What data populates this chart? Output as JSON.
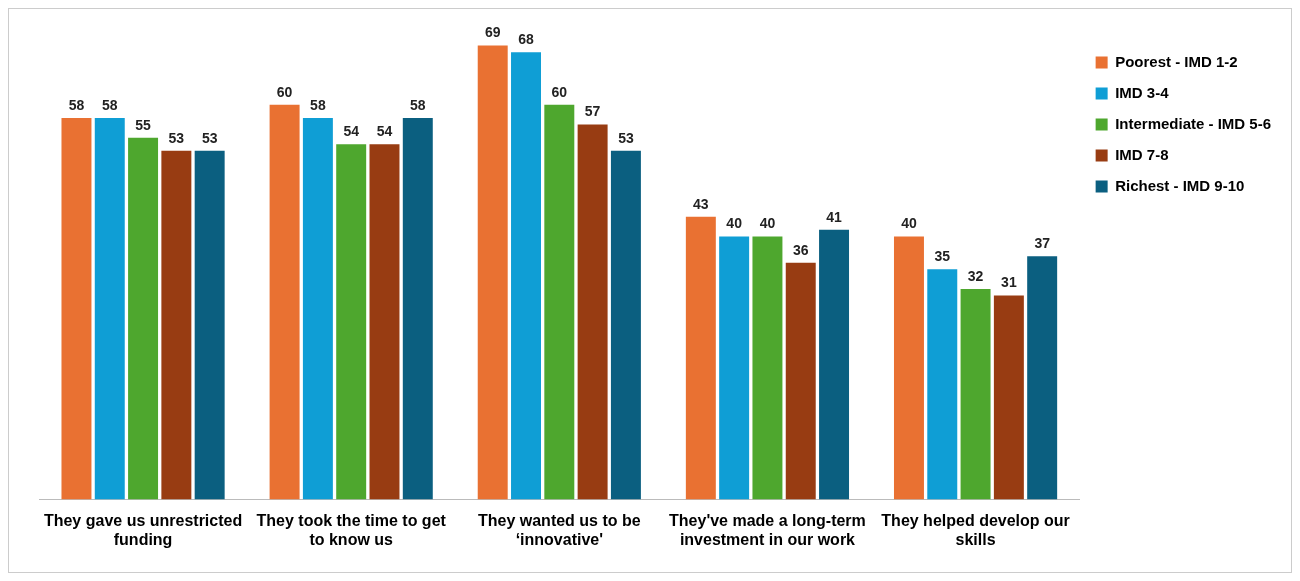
{
  "chart_data": {
    "type": "bar",
    "categories": [
      "They gave us unrestricted funding",
      "They took the time to get to know us",
      "They wanted us to be ‘innovative'",
      "They've made a long-term investment in our work",
      "They helped develop our skills"
    ],
    "series": [
      {
        "name": "Poorest - IMD 1-2",
        "color": "#e97132",
        "values": [
          58,
          60,
          69,
          43,
          40
        ]
      },
      {
        "name": "IMD 3-4",
        "color": "#0f9ed5",
        "values": [
          58,
          58,
          68,
          40,
          35
        ]
      },
      {
        "name": "Intermediate - IMD 5-6",
        "color": "#4ea72e",
        "values": [
          55,
          54,
          60,
          40,
          32
        ]
      },
      {
        "name": "IMD 7-8",
        "color": "#983c12",
        "values": [
          53,
          54,
          57,
          36,
          31
        ]
      },
      {
        "name": "Richest - IMD 9-10",
        "color": "#0b5f80",
        "values": [
          53,
          58,
          53,
          41,
          37
        ]
      }
    ],
    "data_labels": true,
    "grid": false,
    "legend": "top right"
  }
}
